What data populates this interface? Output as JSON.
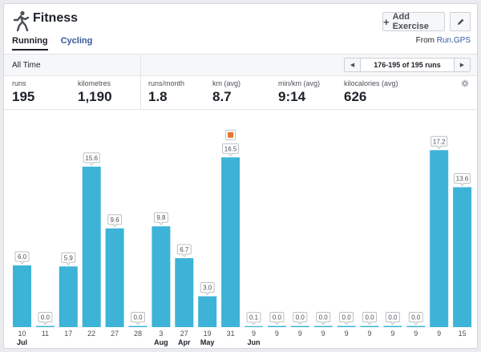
{
  "header": {
    "title": "Fitness",
    "add_exercise_label": "Add Exercise",
    "add_icon": "plus-icon",
    "edit_icon": "pencil-icon",
    "app_icon": "runner-icon"
  },
  "tabs": [
    {
      "label": "Running",
      "active": true
    },
    {
      "label": "Cycling",
      "active": false
    }
  ],
  "source": {
    "prefix": "From",
    "link": "Run.GPS"
  },
  "filter": {
    "label": "All Time"
  },
  "pager": {
    "text": "176-195 of 195 runs"
  },
  "stats": [
    {
      "label": "runs",
      "value": "195"
    },
    {
      "label": "kilometres",
      "value": "1,190"
    },
    {
      "label": "runs/month",
      "value": "1.8"
    },
    {
      "label": "km (avg)",
      "value": "8.7"
    },
    {
      "label": "min/km (avg)",
      "value": "9:14"
    },
    {
      "label": "kilocalories (avg)",
      "value": "626"
    }
  ],
  "colors": {
    "bar": "#3db3d8",
    "accent_link": "#365899",
    "badge": "#e8742e"
  },
  "chart_data": {
    "type": "bar",
    "categories": [
      "10",
      "11",
      "17",
      "22",
      "27",
      "28",
      "3",
      "27",
      "19",
      "31",
      "9",
      "9",
      "9",
      "9",
      "9",
      "9",
      "9",
      "9",
      "9",
      "15"
    ],
    "values": [
      6.0,
      0.0,
      5.9,
      15.6,
      9.6,
      0.0,
      9.8,
      6.7,
      3.0,
      16.5,
      0.1,
      0.0,
      0.0,
      0.0,
      0.0,
      0.0,
      0.0,
      0.0,
      17.2,
      13.6
    ],
    "data_labels": [
      "6.0",
      "0.0",
      "5.9",
      "15.6",
      "9.6",
      "0.0",
      "9.8",
      "6.7",
      "3.0",
      "16.5",
      "0.1",
      "0.0",
      "0.0",
      "0.0",
      "0.0",
      "0.0",
      "0.0",
      "0.0",
      "17.2",
      "13.6"
    ],
    "group_labels": [
      {
        "index": 0,
        "label": "Jul"
      },
      {
        "index": 6,
        "label": "Aug"
      },
      {
        "index": 7,
        "label": "Apr"
      },
      {
        "index": 8,
        "label": "May"
      },
      {
        "index": 10,
        "label": "Jun"
      }
    ],
    "badge_index": 9,
    "ylim": [
      0,
      18
    ],
    "grid": false,
    "title": "",
    "xlabel": "",
    "ylabel": ""
  }
}
